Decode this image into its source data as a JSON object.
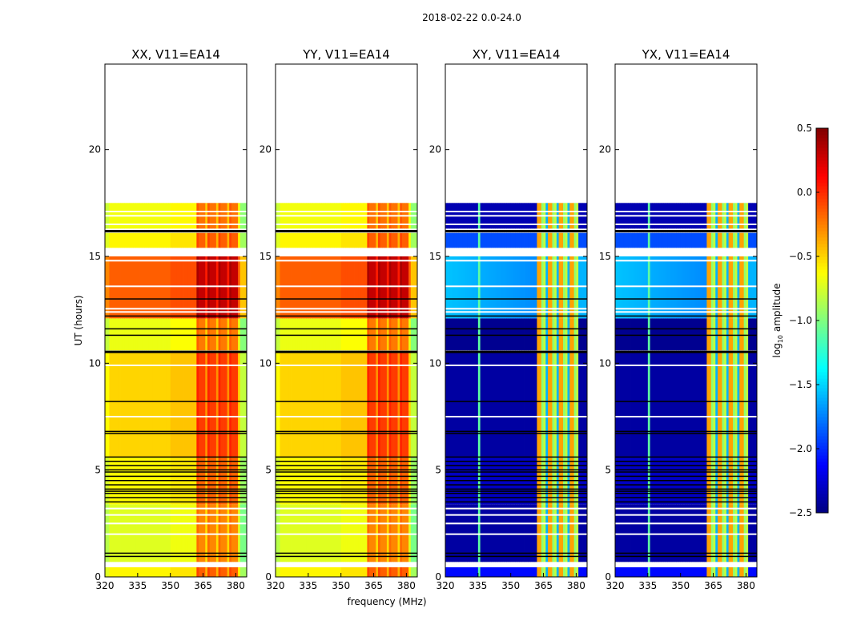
{
  "chart_data": {
    "type": "heatmap",
    "suptitle": "2018-02-22 0.0-24.0",
    "xlabel": "frequency (MHz)",
    "ylabel": "UT (hours)",
    "xlim": [
      320,
      385
    ],
    "ylim": [
      0,
      24
    ],
    "xticks": [
      320,
      335,
      350,
      365,
      380
    ],
    "xtick_labels": [
      "320",
      "335",
      "350",
      "365",
      "380"
    ],
    "yticks": [
      0,
      5,
      10,
      15,
      20
    ],
    "ytick_labels": [
      "0",
      "5",
      "10",
      "15",
      "20"
    ],
    "panels": [
      {
        "title": "XX, V11=EA14",
        "kind": "parallel"
      },
      {
        "title": "YY, V11=EA14",
        "kind": "parallel"
      },
      {
        "title": "XY, V11=EA14",
        "kind": "cross"
      },
      {
        "title": "YX, V11=EA14",
        "kind": "cross"
      }
    ],
    "colorbar": {
      "label_prefix": "log",
      "label_sub": "10",
      "label_suffix": " amplitude",
      "range": [
        -2.5,
        0.5
      ],
      "ticks": [
        0.5,
        0.0,
        -0.5,
        -1.0,
        -1.5,
        -2.0,
        -2.5
      ],
      "tick_labels": [
        "0.5",
        "0.0",
        "−0.5",
        "−1.0",
        "−1.5",
        "−2.0",
        "−2.5"
      ],
      "colormap": "jet"
    },
    "time_segments_hours_level": {
      "columns": [
        "t_start",
        "t_end",
        "parallel_level",
        "cross_level"
      ],
      "rows": [
        [
          0.0,
          0.45,
          -0.6,
          -2.1
        ],
        [
          0.7,
          3.4,
          -0.72,
          -2.4
        ],
        [
          3.4,
          5.6,
          -0.62,
          -2.3
        ],
        [
          5.6,
          10.5,
          -0.5,
          -2.4
        ],
        [
          10.6,
          12.1,
          -0.68,
          -2.45
        ],
        [
          12.1,
          15.0,
          -0.15,
          -1.6
        ],
        [
          15.4,
          16.1,
          -0.6,
          -1.9
        ],
        [
          16.3,
          17.5,
          -0.66,
          -2.35
        ]
      ]
    },
    "band": {
      "start_mhz": 362,
      "end_mhz": 381,
      "parallel_boost": 0.45,
      "cross_level": -0.8
    },
    "flagged_black_hours": [
      0.95,
      1.1,
      3.5,
      3.7,
      3.9,
      4.0,
      4.1,
      4.3,
      4.5,
      4.7,
      4.9,
      5.0,
      5.2,
      5.4,
      5.6,
      6.7,
      6.8,
      8.2,
      10.55,
      11.3,
      11.6,
      12.2,
      13.0,
      16.2
    ],
    "flagged_white_hours": [
      0.5,
      2.0,
      2.5,
      2.9,
      3.2,
      7.5,
      9.9,
      12.4,
      12.55,
      13.6,
      14.8,
      15.2,
      16.5,
      16.9,
      17.1
    ],
    "cross_line_mhz": 335
  }
}
